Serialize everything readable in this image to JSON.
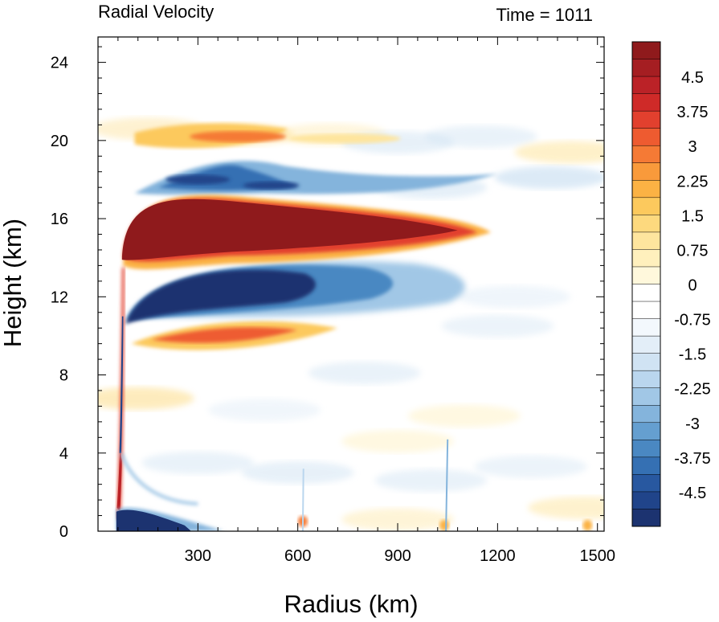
{
  "chart_data": {
    "type": "heatmap",
    "title": "Radial Velocity",
    "subtitle": "Time = 1011",
    "xlabel": "Radius (km)",
    "ylabel": "Height (km)",
    "xlim": [
      0,
      1520
    ],
    "ylim": [
      0,
      25.3
    ],
    "x_ticks": [
      "300",
      "600",
      "900",
      "1200",
      "1500"
    ],
    "y_ticks": [
      "0",
      "4",
      "8",
      "12",
      "16",
      "20",
      "24"
    ],
    "colorbar": {
      "min": -5.25,
      "max": 5.25,
      "step": 0.25,
      "labels": [
        "4.5",
        "3.75",
        "3",
        "2.25",
        "1.5",
        "0.75",
        "0",
        "-0.75",
        "-1.5",
        "-2.25",
        "-3",
        "-3.75",
        "-4.5"
      ],
      "colors_top_to_bottom": [
        "#8f1a1c",
        "#a51e22",
        "#bb2227",
        "#cf2a28",
        "#e2402e",
        "#ee5b30",
        "#f57a35",
        "#f99a3b",
        "#fbb244",
        "#fcc95d",
        "#fdd97e",
        "#fee59e",
        "#fff0bd",
        "#fff8dc",
        "#ffffff",
        "#ffffff",
        "#f3f8fd",
        "#e3eef8",
        "#d0e3f3",
        "#bad6ee",
        "#a1c7e6",
        "#84b4dc",
        "#659fd0",
        "#4a88c2",
        "#3570b3",
        "#2858a0",
        "#20448a",
        "#1c3370"
      ]
    },
    "features": [
      {
        "name": "upper-level outflow",
        "sign": "positive",
        "value": 5.0,
        "x_range": [
          75,
          1140
        ],
        "z_range": [
          14,
          17.2
        ]
      },
      {
        "name": "inflow below outflow",
        "sign": "negative",
        "value": -5.0,
        "x_range": [
          100,
          900
        ],
        "z_range": [
          10.8,
          13.8
        ]
      },
      {
        "name": "mid-level outflow",
        "sign": "positive",
        "value": 2.0,
        "x_range": [
          100,
          700
        ],
        "z_range": [
          9.4,
          10.6
        ]
      },
      {
        "name": "upper inflow",
        "sign": "negative",
        "value": -3.0,
        "x_range": [
          150,
          550
        ],
        "z_range": [
          17.2,
          18.8
        ]
      },
      {
        "name": "top outflow",
        "sign": "positive",
        "value": 1.5,
        "x_range": [
          120,
          560
        ],
        "z_range": [
          19.5,
          20.8
        ]
      },
      {
        "name": "boundary-layer inflow",
        "sign": "negative",
        "value": -5.0,
        "x_range": [
          55,
          280
        ],
        "z_range": [
          0,
          1.3
        ]
      }
    ]
  }
}
